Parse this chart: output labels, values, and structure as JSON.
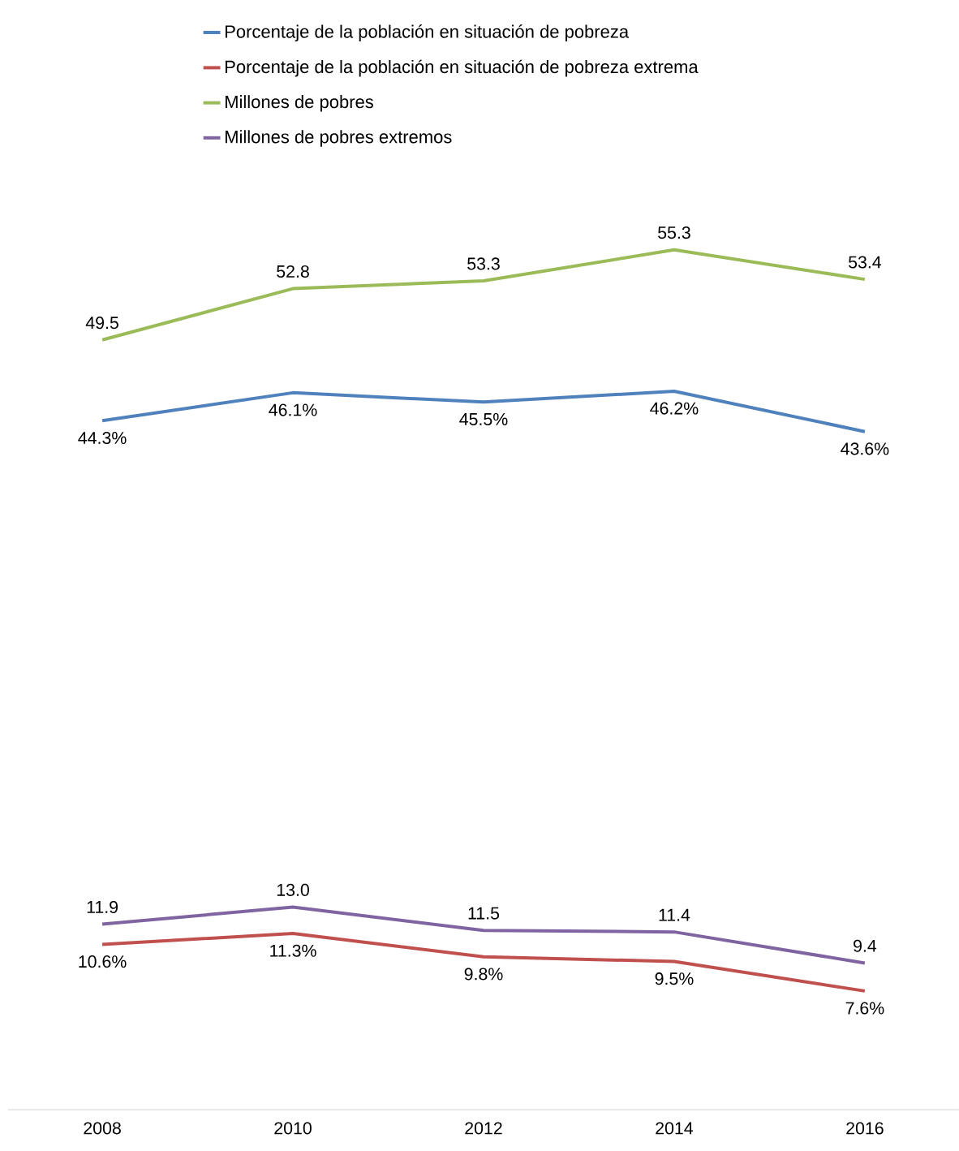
{
  "chart_data": {
    "type": "line",
    "categories": [
      "2008",
      "2010",
      "2012",
      "2014",
      "2016"
    ],
    "legend": "top",
    "tick_labels": "x",
    "grid": false,
    "marker": "none",
    "line_style": "solid",
    "series": [
      {
        "name": "Porcentaje de la población en situación de pobreza",
        "color": "#4f81bd",
        "values": [
          44.3,
          46.1,
          45.5,
          46.2,
          43.6
        ],
        "value_labels": [
          "44.3%",
          "46.1%",
          "45.5%",
          "46.2%",
          "43.6%"
        ]
      },
      {
        "name": "Porcentaje de la población en situación de pobreza extrema",
        "color": "#c0504d",
        "values": [
          10.6,
          11.3,
          9.8,
          9.5,
          7.6
        ],
        "value_labels": [
          "10.6%",
          "11.3%",
          "9.8%",
          "9.5%",
          "7.6%"
        ]
      },
      {
        "name": "Millones de pobres",
        "color": "#9bbb59",
        "values": [
          49.5,
          52.8,
          53.3,
          55.3,
          53.4
        ],
        "value_labels": [
          "49.5",
          "52.8",
          "53.3",
          "55.3",
          "53.4"
        ]
      },
      {
        "name": "Millones de pobres extremos",
        "color": "#8064a2",
        "values": [
          11.9,
          13.0,
          11.5,
          11.4,
          9.4
        ],
        "value_labels": [
          "11.9",
          "13.0",
          "11.5",
          "11.4",
          "9.4"
        ]
      }
    ]
  }
}
